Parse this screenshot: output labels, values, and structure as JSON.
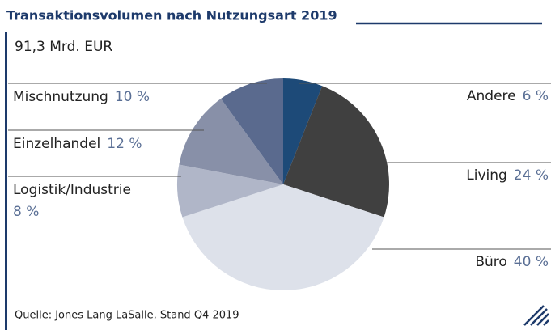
{
  "chart_data": {
    "type": "pie",
    "title": "Transaktionsvolumen nach Nutzungsart 2019",
    "subtitle": "91,3 Mrd. EUR",
    "source": "Quelle: Jones Lang LaSalle, Stand Q4 2019",
    "categories": [
      "Andere",
      "Living",
      "Büro",
      "Logistik/Industrie",
      "Einzelhandel",
      "Mischnutzung"
    ],
    "values": [
      6,
      24,
      40,
      8,
      12,
      10
    ],
    "value_labels": [
      "6 %",
      "24 %",
      "40 %",
      "8 %",
      "12 %",
      "10 %"
    ],
    "colors": [
      "#1d4a78",
      "#404040",
      "#dde1ea",
      "#b0b6c8",
      "#8890a8",
      "#5a6a8e"
    ]
  }
}
